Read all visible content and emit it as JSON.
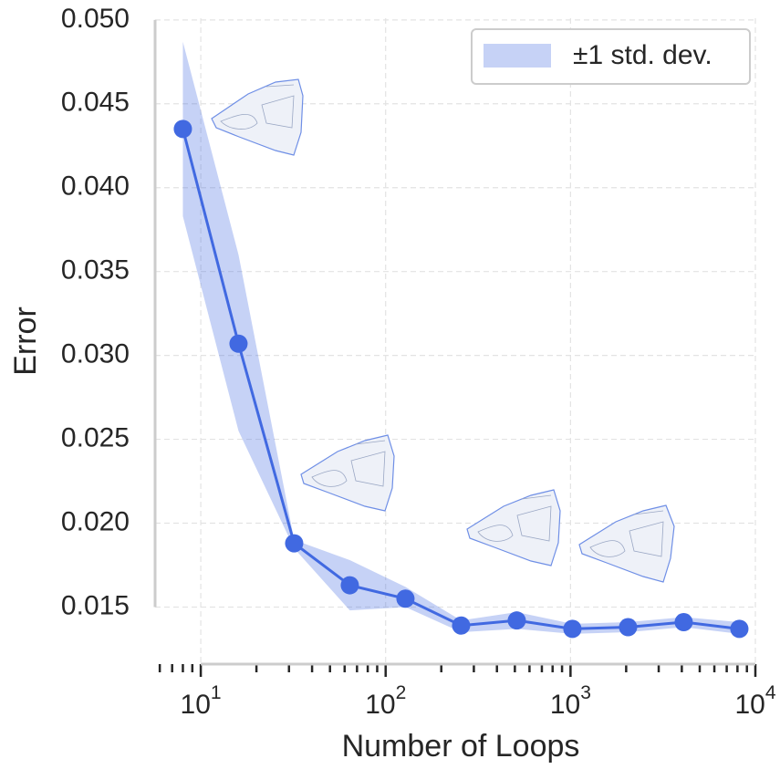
{
  "chart_data": {
    "type": "line",
    "x_label": "Number of Loops",
    "y_label": "Error",
    "x": [
      8,
      16,
      32,
      64,
      128,
      256,
      512,
      1024,
      2048,
      4096,
      8192
    ],
    "series": [
      {
        "color": "#4169e1",
        "values": [
          0.0435,
          0.0307,
          0.0188,
          0.0163,
          0.0155,
          0.0139,
          0.0142,
          0.0137,
          0.0138,
          0.0141,
          0.0137
        ]
      }
    ],
    "band": {
      "name": "±1 std. dev.",
      "color": "#4169e1",
      "lower": [
        0.0383,
        0.0255,
        0.0185,
        0.0148,
        0.015,
        0.0135,
        0.0137,
        0.0134,
        0.0135,
        0.0138,
        0.0134
      ],
      "upper": [
        0.0487,
        0.036,
        0.019,
        0.0178,
        0.0162,
        0.0142,
        0.0147,
        0.014,
        0.0141,
        0.0144,
        0.0141
      ]
    },
    "xlog": true,
    "xlim": [
      5.66,
      10000
    ],
    "ylim": [
      0.0116,
      0.0501
    ],
    "xticks": [
      {
        "value": 10,
        "label": "10",
        "exponent": "1"
      },
      {
        "value": 100,
        "label": "10",
        "exponent": "2"
      },
      {
        "value": 1000,
        "label": "10",
        "exponent": "3"
      },
      {
        "value": 10000,
        "label": "10",
        "exponent": "4"
      }
    ],
    "minor_xticks": [
      6,
      7,
      8,
      9,
      20,
      30,
      40,
      50,
      60,
      70,
      80,
      90,
      200,
      300,
      400,
      500,
      600,
      700,
      800,
      900,
      2000,
      3000,
      4000,
      5000,
      6000,
      7000,
      8000,
      9000
    ],
    "yticks": [
      0.015,
      {
        "value": 0.02,
        "label": "0.020"
      },
      0.025,
      {
        "value": 0.03,
        "label": "0.030"
      },
      0.035,
      {
        "value": 0.04,
        "label": "0.040"
      },
      0.045,
      {
        "value": 0.05,
        "label": "0.050"
      }
    ],
    "grid": true,
    "legend": "upper right"
  }
}
